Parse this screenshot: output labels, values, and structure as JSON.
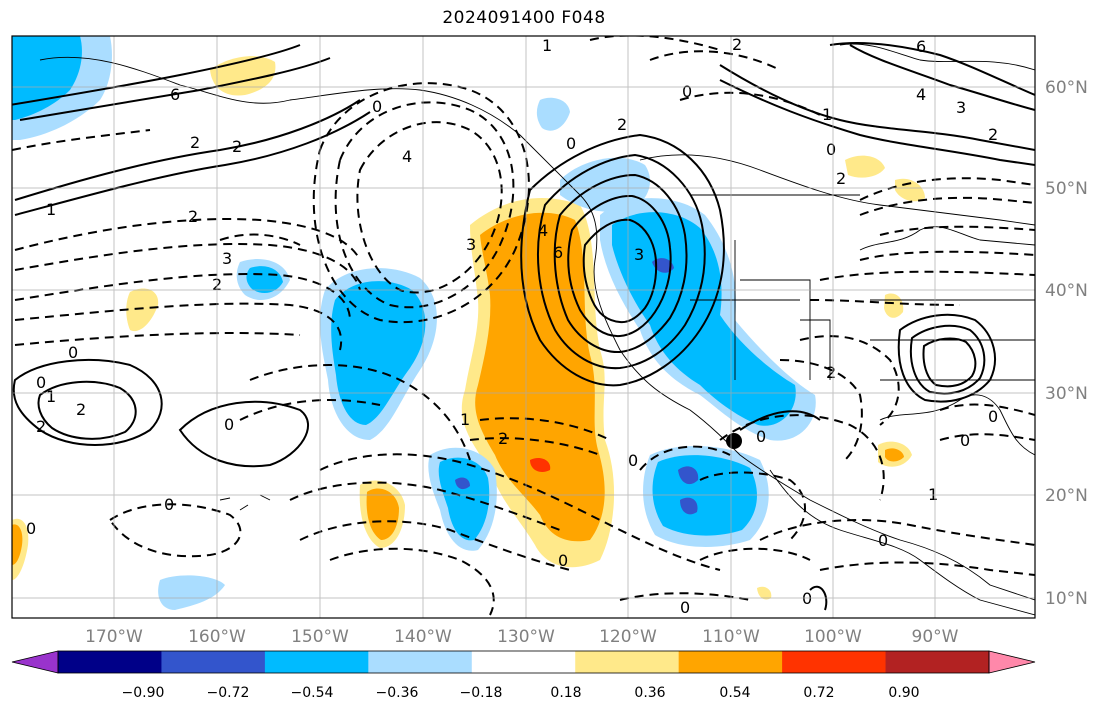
{
  "title": "2024091400 F048",
  "map": {
    "lon_labels": [
      "170°W",
      "160°W",
      "150°W",
      "140°W",
      "130°W",
      "120°W",
      "110°W",
      "100°W",
      "90°W"
    ],
    "lat_labels": [
      "60°N",
      "50°N",
      "40°N",
      "30°N",
      "20°N",
      "10°N"
    ],
    "contour_labels": [
      "1",
      "1",
      "6",
      "2",
      "2",
      "0",
      "4",
      "2",
      "3",
      "2",
      "0",
      "2",
      "1",
      "2",
      "0",
      "1",
      "2",
      "6",
      "4",
      "3",
      "3",
      "0",
      "2",
      "2",
      "0",
      "6",
      "2",
      "4",
      "3",
      "0",
      "1",
      "2",
      "0",
      "0",
      "0",
      "0",
      "0",
      "0",
      "0",
      "2",
      "0",
      "0",
      "1",
      "0",
      "0"
    ],
    "marker": "station-marker"
  },
  "colorbar": {
    "labels": [
      "−0.90",
      "−0.72",
      "−0.54",
      "−0.36",
      "−0.18",
      "0.18",
      "0.36",
      "0.54",
      "0.72",
      "0.90"
    ],
    "colors": [
      "#9933cc",
      "#000088",
      "#3355cc",
      "#00bbff",
      "#aaddff",
      "#ffffff",
      "#ffe98a",
      "#ffa500",
      "#ff3300",
      "#b22222",
      "#ff88aa"
    ]
  }
}
